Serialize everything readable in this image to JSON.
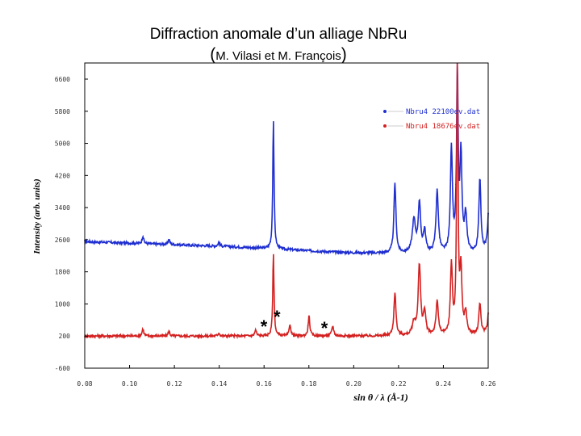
{
  "page": {
    "title": "Diffraction anomale d’un alliage NbRu",
    "subtitle": "M. Vilasi et M. François"
  },
  "chart_data": {
    "type": "line",
    "title": "Diffraction anomale d’un alliage NbRu",
    "subtitle": "M. Vilasi et M. François",
    "xlabel": "sin θ / λ (Å-1)",
    "ylabel": "Intensity (arb. units)",
    "xlim": [
      0.08,
      0.25
    ],
    "ylim": [
      -600,
      6800
    ],
    "x_ticks": [
      "0.08",
      "0.10",
      "0.12",
      "0.14",
      "0.16",
      "0.18",
      "0.20",
      "0.22",
      "0.24",
      "0.26"
    ],
    "y_ticks": [
      "-600",
      "200",
      "1000",
      "1800",
      "2600",
      "3400",
      "4200",
      "5000",
      "5800",
      "6600"
    ],
    "grid": false,
    "legend_position": "top-right",
    "annotation_marker": "*",
    "annotations_x": [
      0.1555,
      0.161,
      0.181
    ],
    "series": [
      {
        "name": "Nbru4 22100ev.dat",
        "color": "#1f2fd0",
        "baseline": [
          [
            0.08,
            2470
          ],
          [
            0.14,
            2350
          ],
          [
            0.19,
            2200
          ],
          [
            0.25,
            2150
          ]
        ],
        "peaks": [
          [
            0.1045,
            190,
            0.0004
          ],
          [
            0.1155,
            130,
            0.0004
          ],
          [
            0.1365,
            100,
            0.0004
          ],
          [
            0.1595,
            3130,
            0.00032
          ],
          [
            0.2107,
            1700,
            0.0005
          ],
          [
            0.2187,
            790,
            0.0008
          ],
          [
            0.221,
            1170,
            0.0006
          ],
          [
            0.2232,
            520,
            0.0006
          ],
          [
            0.2285,
            1500,
            0.0006
          ],
          [
            0.2345,
            2550,
            0.0005
          ],
          [
            0.237,
            4400,
            0.0004
          ],
          [
            0.2385,
            2300,
            0.0005
          ],
          [
            0.2405,
            900,
            0.0006
          ],
          [
            0.2465,
            1800,
            0.0005
          ],
          [
            0.2505,
            1600,
            0.0005
          ],
          [
            0.2525,
            4500,
            0.0004
          ],
          [
            0.2545,
            4500,
            0.0004
          ],
          [
            0.2565,
            1100,
            0.0005
          ],
          [
            0.259,
            700,
            0.0005
          ],
          [
            0.2635,
            300,
            0.0006
          ]
        ]
      },
      {
        "name": "Nbru4 18676ev.dat",
        "color": "#d42020",
        "baseline": [
          [
            0.08,
            180
          ],
          [
            0.25,
            180
          ]
        ],
        "peaks": [
          [
            0.1045,
            180,
            0.0004
          ],
          [
            0.1155,
            120,
            0.0004
          ],
          [
            0.1365,
            80,
            0.0004
          ],
          [
            0.152,
            150,
            0.0004
          ],
          [
            0.1595,
            1980,
            0.00032
          ],
          [
            0.1665,
            280,
            0.0004
          ],
          [
            0.1745,
            490,
            0.0004
          ],
          [
            0.1845,
            240,
            0.0005
          ],
          [
            0.2107,
            1050,
            0.0005
          ],
          [
            0.2187,
            300,
            0.0008
          ],
          [
            0.221,
            1700,
            0.0006
          ],
          [
            0.2232,
            550,
            0.0006
          ],
          [
            0.2285,
            800,
            0.0006
          ],
          [
            0.2345,
            1700,
            0.0005
          ],
          [
            0.237,
            6700,
            0.00035
          ],
          [
            0.2385,
            1500,
            0.0005
          ],
          [
            0.2405,
            500,
            0.0006
          ],
          [
            0.2465,
            750,
            0.0005
          ],
          [
            0.2505,
            800,
            0.0005
          ],
          [
            0.2525,
            2200,
            0.0004
          ],
          [
            0.2545,
            6700,
            0.00035
          ],
          [
            0.2565,
            3400,
            0.0004
          ],
          [
            0.259,
            500,
            0.0005
          ],
          [
            0.2635,
            150,
            0.0006
          ]
        ]
      }
    ]
  }
}
